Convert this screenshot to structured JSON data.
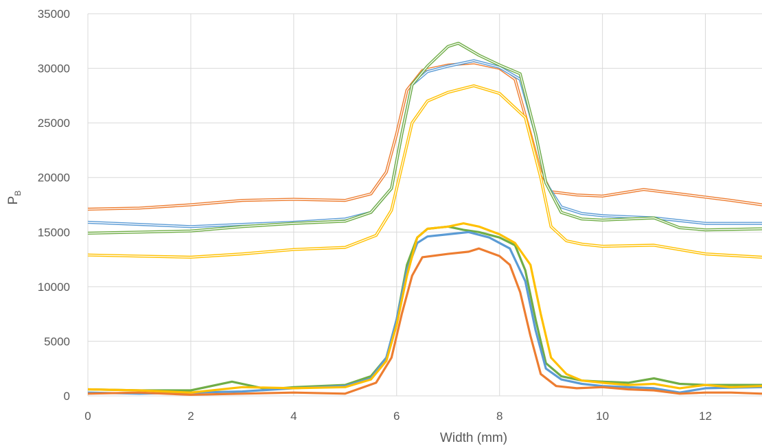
{
  "chart_data": {
    "type": "line",
    "title": "",
    "xlabel": "Width (mm)",
    "ylabel": {
      "main": "P",
      "subscript": "B"
    },
    "xlim": [
      0,
      13.1
    ],
    "ylim": [
      0,
      35000
    ],
    "xticks": [
      0,
      2,
      4,
      6,
      8,
      10,
      12
    ],
    "yticks": [
      0,
      5000,
      10000,
      15000,
      20000,
      25000,
      30000,
      35000
    ],
    "xtick_labels": [
      "0",
      "2",
      "4",
      "6",
      "8",
      "10",
      "12"
    ],
    "ytick_labels": [
      "0",
      "5000",
      "10000",
      "15000",
      "20000",
      "25000",
      "30000",
      "35000"
    ],
    "grid": true,
    "legend": "none",
    "series": [
      {
        "color": "#ED7D31",
        "style": "double",
        "x": [
          0,
          1,
          2,
          3,
          4,
          5,
          5.5,
          5.8,
          6,
          6.2,
          6.5,
          7,
          7.5,
          8,
          8.3,
          8.6,
          8.8,
          9,
          9.5,
          10,
          10.8,
          11.5,
          12.5,
          13.1
        ],
        "y": [
          17100,
          17200,
          17500,
          17900,
          18000,
          17900,
          18500,
          20500,
          24000,
          28000,
          29800,
          30300,
          30500,
          30000,
          29000,
          24000,
          20500,
          18700,
          18400,
          18300,
          18900,
          18500,
          17900,
          17500
        ]
      },
      {
        "color": "#5B9BD5",
        "style": "double",
        "x": [
          0,
          1,
          2,
          3,
          4,
          5,
          5.5,
          5.9,
          6.1,
          6.3,
          6.6,
          7,
          7.5,
          8,
          8.4,
          8.7,
          8.9,
          9.2,
          9.6,
          10,
          11,
          12,
          13.1
        ],
        "y": [
          15900,
          15700,
          15500,
          15700,
          15900,
          16200,
          16800,
          19000,
          24000,
          28500,
          29700,
          30200,
          30700,
          30100,
          29000,
          24000,
          19500,
          17300,
          16700,
          16500,
          16300,
          15800,
          15800
        ]
      },
      {
        "color": "#70AD47",
        "style": "double",
        "x": [
          0,
          1,
          2,
          3,
          4,
          5,
          5.5,
          5.9,
          6.1,
          6.3,
          6.6,
          7,
          7.2,
          7.6,
          8,
          8.4,
          8.7,
          8.9,
          9.2,
          9.6,
          10,
          11,
          11.5,
          12,
          13.1
        ],
        "y": [
          14900,
          15000,
          15100,
          15500,
          15800,
          16000,
          16800,
          19000,
          24000,
          28500,
          30200,
          32000,
          32300,
          31200,
          30300,
          29500,
          24000,
          19500,
          16800,
          16200,
          16100,
          16300,
          15400,
          15200,
          15300
        ]
      },
      {
        "color": "#FFC000",
        "style": "double",
        "x": [
          0,
          1,
          2,
          3,
          4,
          5,
          5.6,
          5.9,
          6.1,
          6.3,
          6.6,
          7,
          7.5,
          8,
          8.5,
          8.8,
          9,
          9.3,
          9.6,
          10,
          11,
          12,
          13.1
        ],
        "y": [
          12900,
          12800,
          12700,
          13000,
          13400,
          13600,
          14700,
          17000,
          21000,
          25000,
          27000,
          27800,
          28400,
          27700,
          25500,
          20000,
          15500,
          14200,
          13900,
          13700,
          13800,
          13000,
          12700
        ]
      },
      {
        "color": "#70AD47",
        "style": "solid",
        "x": [
          0,
          1,
          2,
          2.8,
          3.5,
          4,
          4.5,
          5,
          5.5,
          5.8,
          6,
          6.2,
          6.4,
          6.6,
          7,
          7.3,
          7.6,
          8,
          8.3,
          8.5,
          8.7,
          8.9,
          9.2,
          9.6,
          10,
          10.5,
          11,
          11.5,
          12,
          12.5,
          13.1
        ],
        "y": [
          600,
          500,
          500,
          1300,
          600,
          800,
          900,
          1000,
          1800,
          3500,
          7000,
          12000,
          14500,
          15300,
          15500,
          15200,
          15000,
          14500,
          13800,
          11500,
          7000,
          3000,
          1800,
          1400,
          1300,
          1200,
          1600,
          1100,
          1000,
          1000,
          1000
        ]
      },
      {
        "color": "#5B9BD5",
        "style": "solid",
        "x": [
          0,
          1,
          2,
          3,
          4,
          5,
          5.5,
          5.8,
          6,
          6.2,
          6.4,
          6.6,
          7,
          7.4,
          7.8,
          8.2,
          8.5,
          8.7,
          8.9,
          9.2,
          9.6,
          10,
          11,
          11.5,
          12,
          13.1
        ],
        "y": [
          300,
          200,
          300,
          400,
          700,
          900,
          1600,
          3500,
          7000,
          11500,
          14000,
          14600,
          14800,
          15000,
          14500,
          13500,
          10500,
          6000,
          2500,
          1500,
          1100,
          900,
          700,
          300,
          700,
          800
        ]
      },
      {
        "color": "#ED7D31",
        "style": "solid",
        "x": [
          0,
          1,
          2,
          3,
          4,
          5,
          5.6,
          5.9,
          6.1,
          6.3,
          6.5,
          7,
          7.4,
          7.6,
          8,
          8.2,
          8.4,
          8.6,
          8.8,
          9.1,
          9.5,
          10,
          10.5,
          11,
          11.5,
          12,
          12.5,
          13.1
        ],
        "y": [
          200,
          300,
          100,
          200,
          300,
          200,
          1200,
          3500,
          7500,
          11000,
          12700,
          13000,
          13200,
          13500,
          12800,
          12000,
          9500,
          5500,
          2000,
          900,
          700,
          800,
          600,
          500,
          200,
          300,
          300,
          200
        ]
      },
      {
        "color": "#FFC000",
        "style": "solid",
        "x": [
          0,
          1,
          2,
          3,
          4,
          5,
          5.5,
          5.8,
          6,
          6.2,
          6.4,
          6.6,
          7,
          7.3,
          7.6,
          8,
          8.3,
          8.6,
          8.8,
          9,
          9.3,
          9.6,
          10,
          10.5,
          11,
          11.5,
          12,
          12.5,
          13.1
        ],
        "y": [
          600,
          500,
          300,
          800,
          700,
          800,
          1500,
          3200,
          6500,
          11000,
          14500,
          15300,
          15500,
          15800,
          15500,
          14800,
          14000,
          12000,
          7500,
          3500,
          2000,
          1400,
          1200,
          1000,
          1100,
          700,
          1000,
          800,
          900
        ]
      }
    ]
  }
}
